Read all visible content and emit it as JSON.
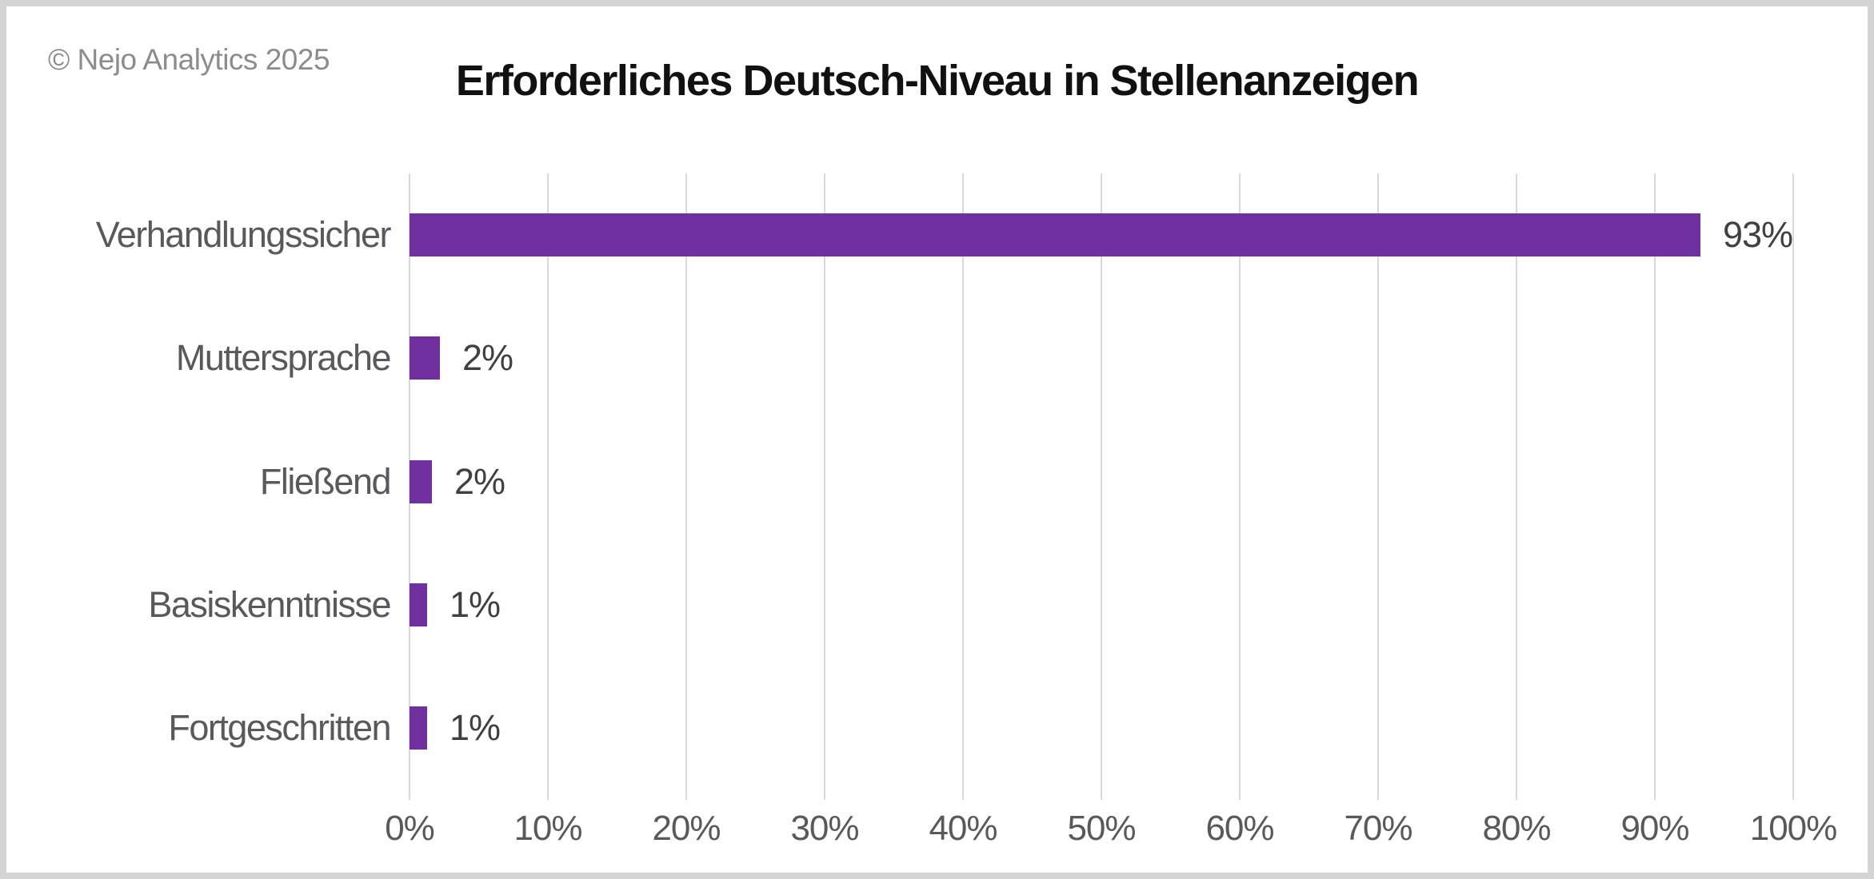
{
  "branding": {
    "copyright": "© Nejo Analytics 2025"
  },
  "title": "Erforderliches Deutsch-Niveau in Stellenanzeigen",
  "chart_data": {
    "type": "bar",
    "orientation": "horizontal",
    "title": "Erforderliches Deutsch-Niveau in Stellenanzeigen",
    "categories": [
      "Verhandlungssicher",
      "Muttersprache",
      "Fließend",
      "Basiskenntnisse",
      "Fortgeschritten"
    ],
    "values": [
      93,
      2,
      2,
      1,
      1
    ],
    "value_labels": [
      "93%",
      "2%",
      "2%",
      "1%",
      "1%"
    ],
    "bar_lengths_pct_estimated": [
      93.3,
      2.2,
      1.6,
      1.3,
      1.3
    ],
    "xlabel": "",
    "ylabel": "",
    "xlim": [
      0,
      100
    ],
    "xticks": [
      0,
      10,
      20,
      30,
      40,
      50,
      60,
      70,
      80,
      90,
      100
    ],
    "xtick_labels": [
      "0%",
      "10%",
      "20%",
      "30%",
      "40%",
      "50%",
      "60%",
      "70%",
      "80%",
      "90%",
      "100%"
    ],
    "grid": "vertical-gridlines-on",
    "legend": "none",
    "colors": {
      "bar": "#7030A0",
      "category_label": "#595959",
      "value_label": "#404040",
      "tick_label": "#595959",
      "gridline": "#d9d9d9",
      "title": "#111111",
      "copyright": "#8c8c8c",
      "frame_border": "#d4d4d4",
      "background": "#ffffff"
    }
  }
}
